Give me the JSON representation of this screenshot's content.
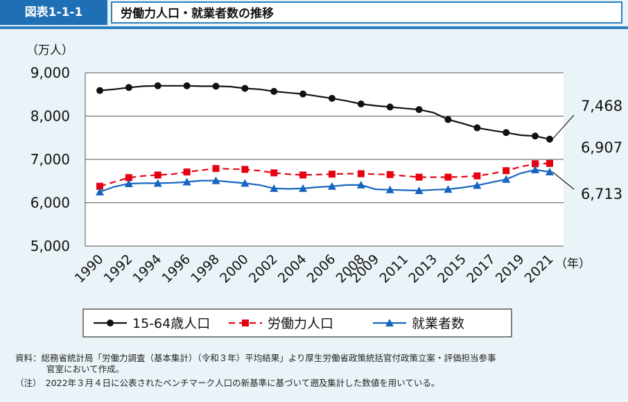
{
  "header": {
    "badge": "図表1-1-1",
    "title": "労働力人口・就業者数の推移"
  },
  "notes": {
    "line1": "資料：総務省統計局「労働力調査（基本集計）（令和３年）平均結果」より厚生労働省政策統括官付政策立案・評価担当参事",
    "line2": "官室において作成。",
    "line3": "（注）　2022年３月４日に公表されたベンチマーク人口の新基準に基づいて遡及集計した数値を用いている。"
  },
  "chart_data": {
    "type": "line",
    "ylabel": "（万人）",
    "xunit": "（年）",
    "ylim": [
      5000,
      9000
    ],
    "yticks": [
      "9,000",
      "8,000",
      "7,000",
      "6,000",
      "5,000"
    ],
    "ytick_values": [
      9000,
      8000,
      7000,
      6000,
      5000
    ],
    "categories": [
      "1990",
      "1992",
      "1994",
      "1996",
      "1998",
      "2000",
      "2002",
      "2004",
      "2006",
      "2008",
      "2009",
      "2011",
      "2013",
      "2015",
      "2017",
      "2019",
      "2021"
    ],
    "x": [
      1990,
      1991,
      1992,
      1993,
      1994,
      1995,
      1996,
      1997,
      1998,
      1999,
      2000,
      2001,
      2002,
      2003,
      2004,
      2005,
      2006,
      2007,
      2008,
      2009,
      2010,
      2011,
      2012,
      2013,
      2014,
      2015,
      2016,
      2017,
      2018,
      2019,
      2020,
      2021
    ],
    "series": [
      {
        "name": "15-64歳人口",
        "color": "#111111",
        "marker": "circle",
        "values": [
          8590,
          8620,
          8660,
          8690,
          8700,
          8700,
          8700,
          8690,
          8690,
          8680,
          8640,
          8620,
          8570,
          8540,
          8510,
          8460,
          8410,
          8350,
          8280,
          8240,
          8210,
          8180,
          8150,
          8080,
          7920,
          7830,
          7730,
          7670,
          7620,
          7560,
          7540,
          7468
        ]
      },
      {
        "name": "労働力人口",
        "color": "#e60012",
        "marker": "square",
        "values": [
          6380,
          6480,
          6580,
          6620,
          6640,
          6660,
          6710,
          6750,
          6790,
          6780,
          6770,
          6740,
          6690,
          6660,
          6640,
          6650,
          6660,
          6670,
          6670,
          6660,
          6650,
          6620,
          6590,
          6590,
          6590,
          6600,
          6620,
          6670,
          6740,
          6830,
          6900,
          6907
        ]
      },
      {
        "name": "就業者数",
        "color": "#1565c0",
        "marker": "triangle",
        "values": [
          6250,
          6370,
          6440,
          6450,
          6450,
          6460,
          6480,
          6510,
          6510,
          6480,
          6450,
          6410,
          6330,
          6320,
          6330,
          6360,
          6380,
          6410,
          6410,
          6310,
          6300,
          6290,
          6280,
          6300,
          6310,
          6350,
          6400,
          6470,
          6540,
          6680,
          6760,
          6713
        ]
      }
    ],
    "end_labels": [
      "7,468",
      "6,907",
      "6,713"
    ]
  }
}
